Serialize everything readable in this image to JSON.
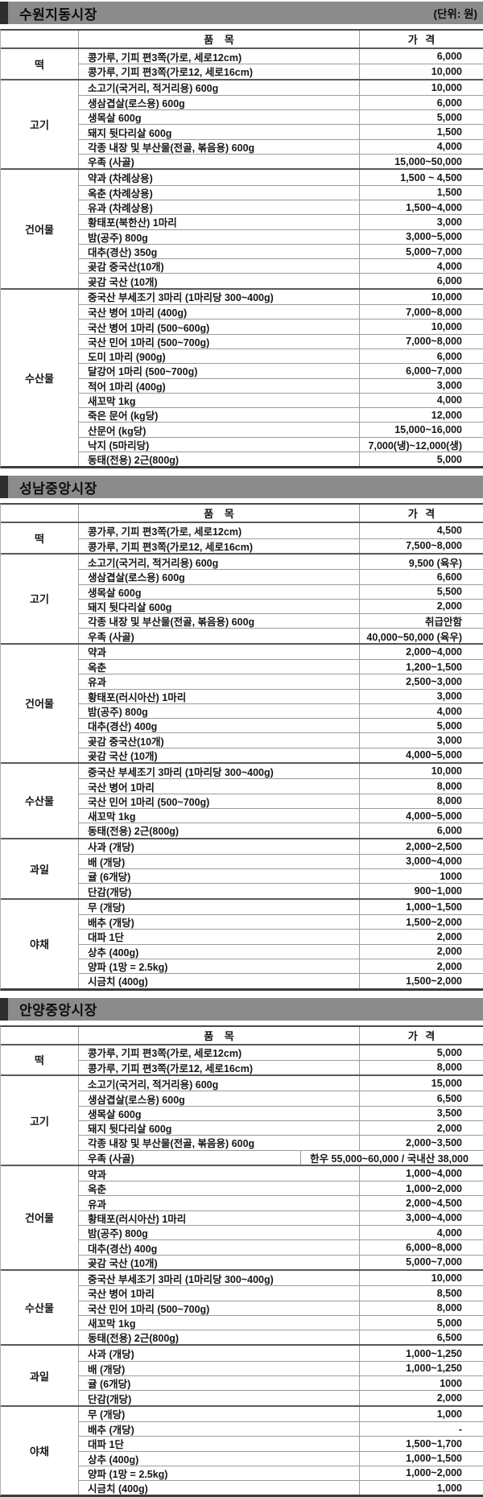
{
  "doc": {
    "unit_label": "(단위: 원)",
    "columns": {
      "item": "품 목",
      "price": "가 격"
    }
  },
  "markets": [
    {
      "name": "수원지동시장",
      "show_unit": true,
      "groups": [
        {
          "category": "떡",
          "rows": [
            {
              "item": "콩가루, 기피 편3쪽(가로, 세로12cm)",
              "price": "6,000"
            },
            {
              "item": "콩가루, 기피 편3쪽(가로12, 세로16cm)",
              "price": "10,000"
            }
          ]
        },
        {
          "category": "고기",
          "rows": [
            {
              "item": "소고기(국거리, 적거리용) 600g",
              "price": "10,000"
            },
            {
              "item": "생삼겹살(로스용) 600g",
              "price": "6,000"
            },
            {
              "item": "생목살 600g",
              "price": "5,000"
            },
            {
              "item": "돼지 뒷다리살 600g",
              "price": "1,500"
            },
            {
              "item": "각종 내장 및 부산물(전골, 볶음용) 600g",
              "price": "4,000"
            },
            {
              "item": "우족 (사골)",
              "price": "15,000~50,000"
            }
          ]
        },
        {
          "category": "건어물",
          "rows": [
            {
              "item": "약과 (차례상용)",
              "price": "1,500 ~ 4,500"
            },
            {
              "item": "옥춘 (차례상용)",
              "price": "1,500"
            },
            {
              "item": "유과 (차례상용)",
              "price": "1,500~4,000"
            },
            {
              "item": "황태포(북한산) 1마리",
              "price": "3,000"
            },
            {
              "item": "밤(공주) 800g",
              "price": "3,000~5,000"
            },
            {
              "item": "대추(경산) 350g",
              "price": "5,000~7,000"
            },
            {
              "item": "곶감 중국산(10개)",
              "price": "4,000"
            },
            {
              "item": "곶감 국산 (10개)",
              "price": "6,000"
            }
          ]
        },
        {
          "category": "수산물",
          "rows": [
            {
              "item": "중국산 부세조기 3마리 (1마리당 300~400g)",
              "price": "10,000"
            },
            {
              "item": "국산 병어 1마리 (400g)",
              "price": "7,000~8,000"
            },
            {
              "item": "국산 병어 1마리 (500~600g)",
              "price": "10,000"
            },
            {
              "item": "국산 민어 1마리 (500~700g)",
              "price": "7,000~8,000"
            },
            {
              "item": "도미 1마리 (900g)",
              "price": "6,000"
            },
            {
              "item": "달강어 1마리 (500~700g)",
              "price": "6,000~7,000"
            },
            {
              "item": "적어 1마리 (400g)",
              "price": "3,000"
            },
            {
              "item": "새꼬막 1kg",
              "price": "4,000"
            },
            {
              "item": "죽은 문어 (kg당)",
              "price": "12,000"
            },
            {
              "item": "산문어 (kg당)",
              "price": "15,000~16,000"
            },
            {
              "item": "낙지 (5마리당)",
              "price": "7,000(냉)~12,000(생)"
            },
            {
              "item": "동태(전용) 2근(800g)",
              "price": "5,000"
            }
          ]
        }
      ]
    },
    {
      "name": "성남중앙시장",
      "show_unit": false,
      "groups": [
        {
          "category": "떡",
          "rows": [
            {
              "item": "콩가루, 기피 편3쪽(가로, 세로12cm)",
              "price": "4,500"
            },
            {
              "item": "콩가루, 기피 편3쪽(가로12, 세로16cm)",
              "price": "7,500~8,000"
            }
          ]
        },
        {
          "category": "고기",
          "rows": [
            {
              "item": "소고기(국거리, 적거리용) 600g",
              "price": "9,500 (육우)"
            },
            {
              "item": "생삼겹살(로스용) 600g",
              "price": "6,600"
            },
            {
              "item": "생목살 600g",
              "price": "5,500"
            },
            {
              "item": "돼지 뒷다리살 600g",
              "price": "2,000"
            },
            {
              "item": "각종 내장 및 부산물(전골, 볶음용) 600g",
              "price": "취급안함"
            },
            {
              "item": "우족 (사골)",
              "price": "40,000~50,000 (육우)"
            }
          ]
        },
        {
          "category": "건어물",
          "rows": [
            {
              "item": "약과",
              "price": "2,000~4,000"
            },
            {
              "item": "옥춘",
              "price": "1,200~1,500"
            },
            {
              "item": "유과",
              "price": "2,500~3,000"
            },
            {
              "item": "황태포(러시아산) 1마리",
              "price": "3,000"
            },
            {
              "item": "밤(공주) 800g",
              "price": "4,000"
            },
            {
              "item": "대추(경산) 400g",
              "price": "5,000"
            },
            {
              "item": "곶감 중국산(10개)",
              "price": "3,000"
            },
            {
              "item": "곶감 국산 (10개)",
              "price": "4,000~5,000"
            }
          ]
        },
        {
          "category": "수산물",
          "rows": [
            {
              "item": "중국산 부세조기 3마리 (1마리당 300~400g)",
              "price": "10,000"
            },
            {
              "item": "국산 병어 1마리",
              "price": "8,000"
            },
            {
              "item": "국산 민어 1마리 (500~700g)",
              "price": "8,000"
            },
            {
              "item": "새꼬막 1kg",
              "price": "4,000~5,000"
            },
            {
              "item": "동태(전용) 2근(800g)",
              "price": "6,000"
            }
          ]
        },
        {
          "category": "과일",
          "rows": [
            {
              "item": "사과 (개당)",
              "price": "2,000~2,500"
            },
            {
              "item": "배 (개당)",
              "price": "3,000~4,000"
            },
            {
              "item": "귤 (6개당)",
              "price": "1000"
            },
            {
              "item": "단감(개당)",
              "price": "900~1,000"
            }
          ]
        },
        {
          "category": "야채",
          "rows": [
            {
              "item": "무 (개당)",
              "price": "1,000~1,500"
            },
            {
              "item": "배추 (개당)",
              "price": "1,500~2,000"
            },
            {
              "item": "대파 1단",
              "price": "2,000"
            },
            {
              "item": "상추 (400g)",
              "price": "2,000"
            },
            {
              "item": "양파 (1망 = 2.5kg)",
              "price": "2,000"
            },
            {
              "item": "시금치 (400g)",
              "price": "1,500~2,000"
            }
          ]
        }
      ]
    },
    {
      "name": "안양중앙시장",
      "show_unit": false,
      "groups": [
        {
          "category": "떡",
          "rows": [
            {
              "item": "콩가루, 기피 편3쪽(가로, 세로12cm)",
              "price": "5,000"
            },
            {
              "item": "콩가루, 기피 편3쪽(가로12, 세로16cm)",
              "price": "8,000"
            }
          ]
        },
        {
          "category": "고기",
          "rows": [
            {
              "item": "소고기(국거리, 적거리용) 600g",
              "price": "15,000"
            },
            {
              "item": "생삼겹살(로스용) 600g",
              "price": "6,500"
            },
            {
              "item": "생목살 600g",
              "price": "3,500"
            },
            {
              "item": "돼지 뒷다리살 600g",
              "price": "2,000"
            },
            {
              "item": "각종 내장 및 부산물(전골, 볶음용) 600g",
              "price": "2,000~3,500"
            },
            {
              "item": "우족 (사골)",
              "price": "한우 55,000~60,000 / 국내산 38,000",
              "wide": true
            }
          ]
        },
        {
          "category": "건어물",
          "rows": [
            {
              "item": "약과",
              "price": "1,000~4,000"
            },
            {
              "item": "옥춘",
              "price": "1,000~2,000"
            },
            {
              "item": "유과",
              "price": "2,000~4,500"
            },
            {
              "item": "황태포(러시아산) 1마리",
              "price": "3,000~4,000"
            },
            {
              "item": "밤(공주) 800g",
              "price": "4,000"
            },
            {
              "item": "대추(경산) 400g",
              "price": "6,000~8,000"
            },
            {
              "item": "곶감 국산 (10개)",
              "price": "5,000~7,000"
            }
          ]
        },
        {
          "category": "수산물",
          "rows": [
            {
              "item": "중국산 부세조기 3마리 (1마리당 300~400g)",
              "price": "10,000"
            },
            {
              "item": "국산 병어 1마리",
              "price": "8,500"
            },
            {
              "item": "국산 민어 1마리 (500~700g)",
              "price": "8,000"
            },
            {
              "item": "새꼬막 1kg",
              "price": "5,000"
            },
            {
              "item": "동태(전용) 2근(800g)",
              "price": "6,500"
            }
          ]
        },
        {
          "category": "과일",
          "rows": [
            {
              "item": "사과 (개당)",
              "price": "1,000~1,250"
            },
            {
              "item": "배 (개당)",
              "price": "1,000~1,250"
            },
            {
              "item": "귤 (6개당)",
              "price": "1000"
            },
            {
              "item": "단감(개당)",
              "price": "2,000"
            }
          ]
        },
        {
          "category": "야채",
          "rows": [
            {
              "item": "무 (개당)",
              "price": "1,000"
            },
            {
              "item": "배추 (개당)",
              "price": "-"
            },
            {
              "item": "대파 1단",
              "price": "1,500~1,700"
            },
            {
              "item": "상추 (400g)",
              "price": "1,000~1,500"
            },
            {
              "item": "양파 (1망 = 2.5kg)",
              "price": "1,000~2,000"
            },
            {
              "item": "시금치 (400g)",
              "price": "1,000"
            }
          ]
        }
      ]
    }
  ]
}
